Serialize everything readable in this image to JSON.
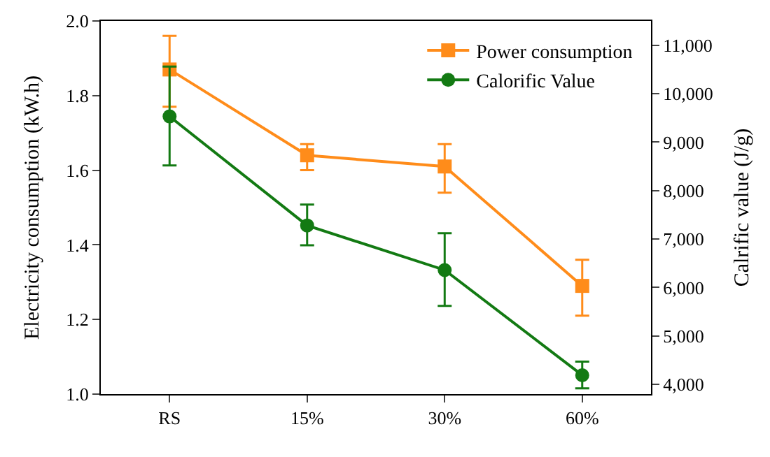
{
  "chart_data": {
    "type": "line",
    "categories": [
      "RS",
      "15%",
      "30%",
      "60%"
    ],
    "ylabel": "Electricity consumption (kW.h)",
    "y2label": "Calrific value (J/g)",
    "ylim": [
      1.0,
      2.0
    ],
    "yticks": [
      {
        "value": 1,
        "label": "1.0"
      },
      1.2,
      1.4,
      1.6,
      1.8,
      {
        "value": 2,
        "label": "2.0"
      }
    ],
    "y2lim": [
      3800,
      11500
    ],
    "y2ticks": [
      {
        "value": 4000,
        "label": "4,000"
      },
      {
        "value": 5000,
        "label": "5,000"
      },
      {
        "value": 6000,
        "label": "6,000"
      },
      {
        "value": 7000,
        "label": "7,000"
      },
      {
        "value": 8000,
        "label": "8,000"
      },
      {
        "value": 9000,
        "label": "9,000"
      },
      {
        "value": 10000,
        "label": "10,000"
      },
      {
        "value": 11000,
        "label": "11,000"
      }
    ],
    "legend": "top right",
    "series": [
      {
        "name": "Power consumption",
        "color": "#ff8c1a",
        "marker": "square",
        "values": [
          1.87,
          1.64,
          1.61,
          1.29
        ],
        "errors": [
          [
            1.77,
            1.96
          ],
          [
            1.6,
            1.67
          ],
          [
            1.54,
            1.67
          ],
          [
            1.21,
            1.36
          ]
        ]
      },
      {
        "name": "Calorific Value",
        "color": "#137a13",
        "marker": "circle",
        "axis": "y2",
        "values": [
          9530,
          7280,
          6360,
          4190
        ],
        "errors": [
          [
            8520,
            10560
          ],
          [
            6870,
            7710
          ],
          [
            5620,
            7120
          ],
          [
            3920,
            4470
          ]
        ]
      }
    ]
  }
}
